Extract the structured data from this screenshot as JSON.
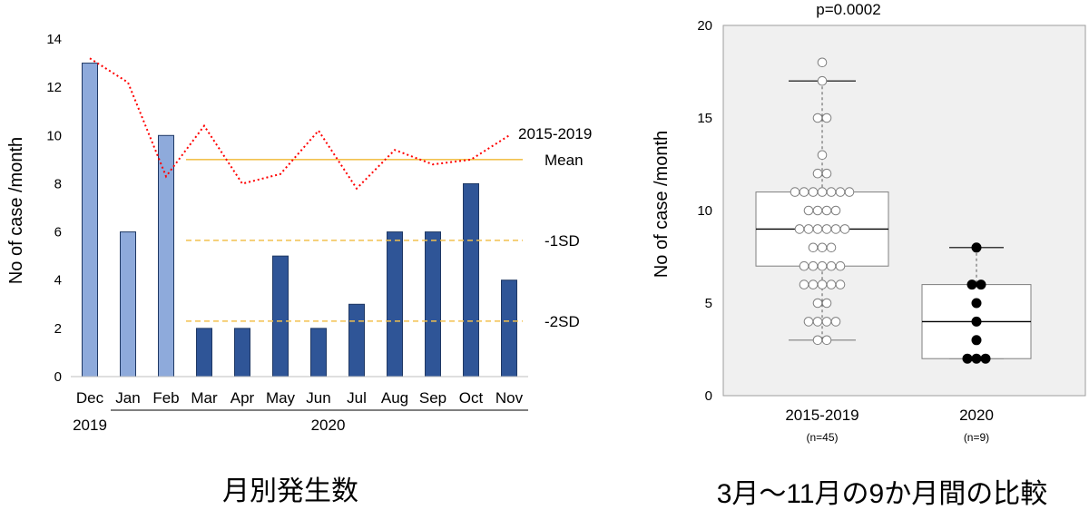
{
  "chart_data": [
    {
      "type": "bar",
      "title": "月別発生数",
      "ylabel": "No of case /month",
      "ylim": [
        0,
        14
      ],
      "yticks": [
        0,
        2,
        4,
        6,
        8,
        10,
        12,
        14
      ],
      "categories": [
        "Dec",
        "Jan",
        "Feb",
        "Mar",
        "Apr",
        "May",
        "Jun",
        "Jul",
        "Aug",
        "Sep",
        "Oct",
        "Nov"
      ],
      "year_labels": [
        "2019",
        "2020"
      ],
      "series": [
        {
          "name": "",
          "values": [
            13,
            6,
            10,
            2,
            2,
            5,
            2,
            3,
            6,
            6,
            8,
            4
          ],
          "colors": [
            "#8eaadb",
            "#8eaadb",
            "#8eaadb",
            "#2f5597",
            "#2f5597",
            "#2f5597",
            "#2f5597",
            "#2f5597",
            "#2f5597",
            "#2f5597",
            "#2f5597",
            "#2f5597"
          ]
        },
        {
          "name": "2015-2019",
          "type": "line",
          "style": "dotted",
          "color": "#ff0000",
          "values": [
            13.2,
            12.2,
            8.3,
            10.4,
            8.0,
            8.4,
            10.2,
            7.8,
            9.4,
            8.8,
            9.0,
            10.0
          ]
        }
      ],
      "reference_lines": [
        {
          "label": "Mean",
          "value": 9.0,
          "style": "solid",
          "color": "#f2c14e",
          "from": "Mar"
        },
        {
          "label": "-1SD",
          "value": 5.65,
          "style": "dashed",
          "color": "#f2c14e",
          "from": "Mar"
        },
        {
          "label": "-2SD",
          "value": 2.3,
          "style": "dashed",
          "color": "#f2c14e",
          "from": "Mar"
        }
      ]
    },
    {
      "type": "box",
      "title": "3月～11月の9か月間の比較",
      "ylabel": "No of case /month",
      "ylim": [
        0,
        20
      ],
      "yticks": [
        0,
        5,
        10,
        15,
        20
      ],
      "annotation": "p=0.0002",
      "background": "#f0f0f0",
      "groups": [
        {
          "label": "2015-2019",
          "n_label": "(n=45)",
          "min": 3,
          "q1": 7,
          "median": 9,
          "q3": 11,
          "max": 17,
          "marker": "open",
          "points": [
            18,
            17,
            15,
            15,
            13,
            12,
            12,
            11,
            11,
            11,
            11,
            11,
            11,
            11,
            10,
            10,
            10,
            10,
            9,
            9,
            9,
            9,
            9,
            9,
            8,
            8,
            8,
            7,
            7,
            7,
            7,
            7,
            6,
            6,
            6,
            6,
            6,
            5,
            5,
            4,
            4,
            4,
            4,
            3,
            3
          ]
        },
        {
          "label": "2020",
          "n_label": "(n=9)",
          "min": 2,
          "q1": 2,
          "median": 4,
          "q3": 6,
          "max": 8,
          "marker": "filled",
          "points": [
            8,
            6,
            6,
            5,
            4,
            3,
            2,
            2,
            2
          ]
        }
      ]
    }
  ]
}
